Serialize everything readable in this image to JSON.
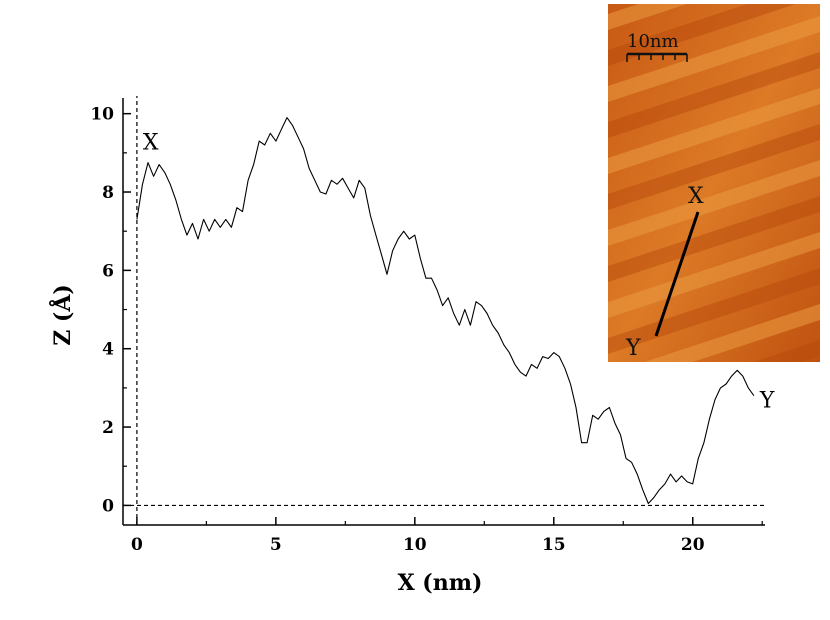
{
  "chart_data": {
    "type": "line",
    "xlabel": "X (nm)",
    "ylabel": "Z (Å)",
    "xlim": [
      -0.5,
      22.6
    ],
    "ylim": [
      -0.5,
      10.4
    ],
    "x_ticks": [
      0,
      5,
      10,
      15,
      20
    ],
    "y_ticks": [
      0,
      2,
      4,
      6,
      8,
      10
    ],
    "grid": false,
    "reference_lines": {
      "x": 0,
      "y": 0,
      "style": "dashed"
    },
    "start_label": "X",
    "end_label": "Y",
    "series": [
      {
        "x": [
          0.0,
          0.2,
          0.4,
          0.6,
          0.8,
          1.0,
          1.2,
          1.4,
          1.6,
          1.8,
          2.0,
          2.2,
          2.4,
          2.6,
          2.8,
          3.0,
          3.2,
          3.4,
          3.6,
          3.8,
          4.0,
          4.2,
          4.4,
          4.6,
          4.8,
          5.0,
          5.2,
          5.4,
          5.6,
          5.8,
          6.0,
          6.2,
          6.4,
          6.6,
          6.8,
          7.0,
          7.2,
          7.4,
          7.6,
          7.8,
          8.0,
          8.2,
          8.4,
          8.6,
          8.8,
          9.0,
          9.2,
          9.4,
          9.6,
          9.8,
          10.0,
          10.2,
          10.4,
          10.6,
          10.8,
          11.0,
          11.2,
          11.4,
          11.6,
          11.8,
          12.0,
          12.2,
          12.4,
          12.6,
          12.8,
          13.0,
          13.2,
          13.4,
          13.6,
          13.8,
          14.0,
          14.2,
          14.4,
          14.6,
          14.8,
          15.0,
          15.2,
          15.4,
          15.6,
          15.8,
          16.0,
          16.2,
          16.4,
          16.6,
          16.8,
          17.0,
          17.2,
          17.4,
          17.6,
          17.8,
          18.0,
          18.2,
          18.4,
          18.6,
          18.8,
          19.0,
          19.2,
          19.4,
          19.6,
          19.8,
          20.0,
          20.2,
          20.4,
          20.6,
          20.8,
          21.0,
          21.2,
          21.4,
          21.6,
          21.8,
          22.0,
          22.2
        ],
        "values": [
          7.3,
          8.2,
          8.75,
          8.4,
          8.7,
          8.5,
          8.2,
          7.8,
          7.3,
          6.9,
          7.2,
          6.8,
          7.3,
          7.0,
          7.3,
          7.1,
          7.3,
          7.1,
          7.6,
          7.5,
          8.3,
          8.7,
          9.3,
          9.2,
          9.5,
          9.3,
          9.6,
          9.9,
          9.7,
          9.4,
          9.1,
          8.6,
          8.3,
          8.0,
          7.95,
          8.3,
          8.2,
          8.35,
          8.1,
          7.85,
          8.3,
          8.1,
          7.4,
          6.9,
          6.4,
          5.9,
          6.5,
          6.8,
          7.0,
          6.8,
          6.9,
          6.3,
          5.8,
          5.8,
          5.5,
          5.1,
          5.3,
          4.9,
          4.6,
          5.0,
          4.6,
          5.2,
          5.1,
          4.9,
          4.6,
          4.4,
          4.1,
          3.9,
          3.6,
          3.4,
          3.3,
          3.6,
          3.5,
          3.8,
          3.75,
          3.9,
          3.8,
          3.5,
          3.1,
          2.5,
          1.6,
          1.6,
          2.3,
          2.2,
          2.4,
          2.5,
          2.1,
          1.8,
          1.2,
          1.1,
          0.8,
          0.4,
          0.05,
          0.2,
          0.4,
          0.55,
          0.8,
          0.6,
          0.75,
          0.6,
          0.55,
          1.2,
          1.6,
          2.2,
          2.7,
          3.0,
          3.1,
          3.3,
          3.45,
          3.3,
          3.0,
          2.8
        ]
      }
    ]
  },
  "inset": {
    "scale_bar_label": "10nm",
    "start_label": "X",
    "end_label": "Y",
    "colors": {
      "dark": "#b84a0c",
      "mid": "#d8701c",
      "light": "#f0a040",
      "line": "#000000"
    }
  }
}
